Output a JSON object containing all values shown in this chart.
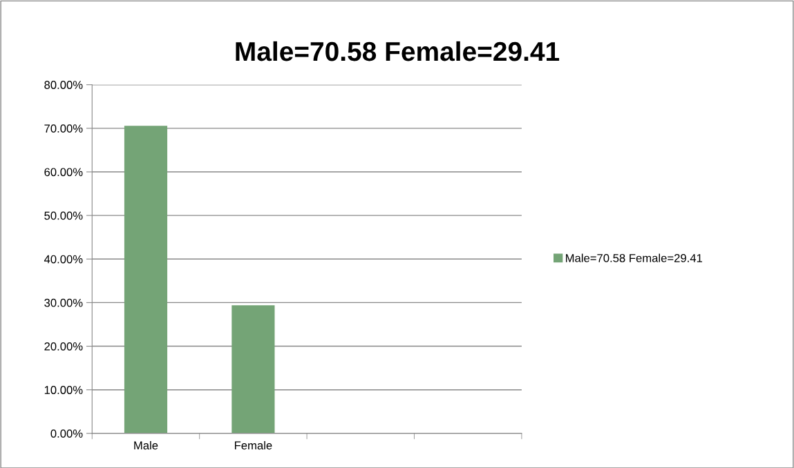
{
  "chart_data": {
    "type": "bar",
    "title": "Male=70.58 Female=29.41",
    "categories": [
      "Male",
      "Female",
      null,
      null
    ],
    "series": [
      {
        "name": "Male=70.58 Female=29.41",
        "color": "#74a476",
        "values": [
          70.58,
          29.41,
          null,
          null
        ]
      }
    ],
    "ylim": [
      0,
      80
    ],
    "yticks": [
      {
        "value": 0,
        "label": "0.00%"
      },
      {
        "value": 10,
        "label": "10.00%"
      },
      {
        "value": 20,
        "label": "20.00%"
      },
      {
        "value": 30,
        "label": "30.00%"
      },
      {
        "value": 40,
        "label": "40.00%"
      },
      {
        "value": 50,
        "label": "50.00%"
      },
      {
        "value": 60,
        "label": "60.00%"
      },
      {
        "value": 70,
        "label": "70.00%"
      },
      {
        "value": 80,
        "label": "80.00%"
      }
    ],
    "grid": "y",
    "legend": "right"
  }
}
